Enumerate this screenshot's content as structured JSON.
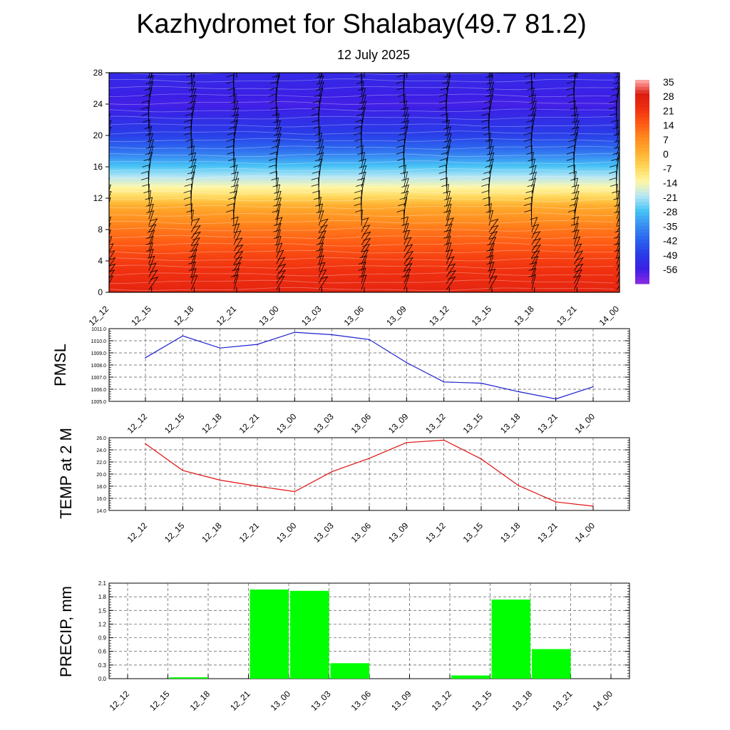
{
  "title": "Kazhydromet for Shalabay(49.7 81.2)",
  "subtitle": "12 July 2025",
  "colors": {
    "pmsl_line": "#1f1fd0",
    "temp_line": "#e01010",
    "precip_bar": "#00ff00",
    "grid": "#555555",
    "barb": "#000000"
  },
  "chart_data": [
    {
      "type": "heatmap",
      "name": "cross-section",
      "x": [
        "12_12",
        "12_15",
        "12_18",
        "12_21",
        "13_00",
        "13_03",
        "13_06",
        "13_09",
        "13_12",
        "13_15",
        "13_18",
        "13_21",
        "14_00"
      ],
      "y_ticks": [
        0,
        4,
        8,
        12,
        16,
        20,
        24,
        28
      ],
      "ylim": [
        0,
        28
      ],
      "colorbar_labels": [
        "35",
        "28",
        "21",
        "14",
        "7",
        "0",
        "-7",
        "-14",
        "-21",
        "-28",
        "-35",
        "-42",
        "-49",
        "-56"
      ],
      "colorscale": [
        "#8a2be2",
        "#3c1fe6",
        "#2a3be8",
        "#2b62ee",
        "#3a8ef2",
        "#45c3f5",
        "#b5e6f5",
        "#fff7a6",
        "#ffd75a",
        "#ffb030",
        "#ff8a1e",
        "#ff5a14",
        "#f03010",
        "#dc1c10",
        "#ffb0b0"
      ],
      "temperature_profile": {
        "heights": [
          0,
          4,
          8,
          11,
          12.5,
          14,
          16,
          18,
          20,
          22,
          24,
          26,
          28
        ],
        "values": [
          28,
          22,
          13,
          4,
          -6,
          -14,
          -24,
          -36,
          -45,
          -49,
          -54,
          -52,
          -50
        ]
      },
      "wind_barbs": "shown"
    },
    {
      "type": "line",
      "name": "pmsl",
      "ylabel": "PMSL",
      "x": [
        "12_12",
        "12_15",
        "12_18",
        "12_21",
        "13_00",
        "13_03",
        "13_06",
        "13_09",
        "13_12",
        "13_15",
        "13_18",
        "13_21",
        "14_00"
      ],
      "values": [
        1008.6,
        1010.4,
        1009.4,
        1009.7,
        1010.7,
        1010.5,
        1010.1,
        1008.2,
        1006.6,
        1006.5,
        1005.8,
        1005.2,
        1006.2
      ],
      "y_ticks": [
        "1005.0",
        "1006.0",
        "1007.0",
        "1008.0",
        "1009.0",
        "1010.0",
        "1011.0"
      ],
      "ylim": [
        1005,
        1011
      ],
      "grid": true
    },
    {
      "type": "line",
      "name": "temperature",
      "ylabel": "TEMP at 2 M",
      "x": [
        "12_12",
        "12_15",
        "12_18",
        "12_21",
        "13_00",
        "13_03",
        "13_06",
        "13_09",
        "13_12",
        "13_15",
        "13_18",
        "13_21",
        "14_00"
      ],
      "values": [
        25.0,
        20.6,
        19.0,
        18.0,
        17.1,
        20.4,
        22.6,
        25.2,
        25.6,
        22.5,
        18.1,
        15.4,
        14.7
      ],
      "y_ticks": [
        "14.0",
        "16.0",
        "18.0",
        "20.0",
        "22.0",
        "24.0",
        "26.0"
      ],
      "ylim": [
        14,
        26
      ],
      "grid": true
    },
    {
      "type": "bar",
      "name": "precipitation",
      "ylabel": "PRECIP, mm",
      "categories": [
        "12_12",
        "12_15",
        "12_18",
        "12_21",
        "13_00",
        "13_03",
        "13_06",
        "13_09",
        "13_12",
        "13_15",
        "13_18",
        "13_21",
        "14_00"
      ],
      "values": [
        0,
        0.03,
        0,
        1.96,
        1.93,
        0.34,
        0,
        0,
        0.07,
        1.74,
        0.65,
        0,
        0
      ],
      "y_ticks": [
        "0.0",
        "0.3",
        "0.6",
        "0.9",
        "1.2",
        "1.5",
        "1.8",
        "2.1"
      ],
      "ylim": [
        0,
        2.1
      ],
      "grid": true
    }
  ]
}
